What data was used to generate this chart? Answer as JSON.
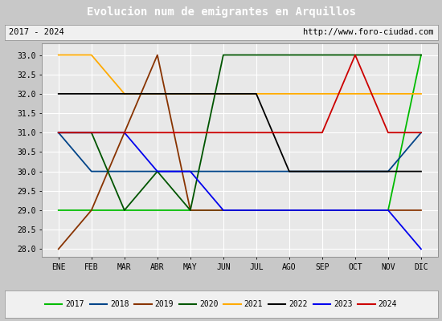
{
  "title": "Evolucion num de emigrantes en Arquillos",
  "subtitle_left": "2017 - 2024",
  "subtitle_right": "http://www.foro-ciudad.com",
  "ylim": [
    27.8,
    33.3
  ],
  "yticks": [
    28.0,
    28.5,
    29.0,
    29.5,
    30.0,
    30.5,
    31.0,
    31.5,
    32.0,
    32.5,
    33.0
  ],
  "months": [
    "ENE",
    "FEB",
    "MAR",
    "ABR",
    "MAY",
    "JUN",
    "JUL",
    "AGO",
    "SEP",
    "OCT",
    "NOV",
    "DIC"
  ],
  "series": {
    "2017": {
      "color": "#00bb00",
      "values": [
        29.0,
        29.0,
        29.0,
        29.0,
        29.0,
        29.0,
        29.0,
        29.0,
        29.0,
        29.0,
        29.0,
        33.0
      ]
    },
    "2018": {
      "color": "#004488",
      "values": [
        31.0,
        30.0,
        30.0,
        30.0,
        30.0,
        30.0,
        30.0,
        30.0,
        30.0,
        30.0,
        30.0,
        31.0
      ]
    },
    "2019": {
      "color": "#883300",
      "values": [
        28.0,
        29.0,
        31.0,
        33.0,
        29.0,
        29.0,
        29.0,
        29.0,
        29.0,
        29.0,
        29.0,
        29.0
      ]
    },
    "2020": {
      "color": "#005500",
      "values": [
        31.0,
        31.0,
        29.0,
        30.0,
        29.0,
        33.0,
        33.0,
        33.0,
        33.0,
        33.0,
        33.0,
        33.0
      ]
    },
    "2021": {
      "color": "#ffaa00",
      "values": [
        33.0,
        33.0,
        32.0,
        32.0,
        32.0,
        32.0,
        32.0,
        32.0,
        32.0,
        32.0,
        32.0,
        32.0
      ]
    },
    "2022": {
      "color": "#000000",
      "values": [
        32.0,
        32.0,
        32.0,
        32.0,
        32.0,
        32.0,
        32.0,
        30.0,
        30.0,
        30.0,
        30.0,
        30.0
      ]
    },
    "2023": {
      "color": "#0000ee",
      "values": [
        31.0,
        31.0,
        31.0,
        30.0,
        30.0,
        29.0,
        29.0,
        29.0,
        29.0,
        29.0,
        29.0,
        28.0
      ]
    },
    "2024": {
      "color": "#cc0000",
      "values": [
        31.0,
        31.0,
        31.0,
        31.0,
        31.0,
        31.0,
        31.0,
        31.0,
        31.0,
        33.0,
        31.0,
        31.0
      ]
    }
  },
  "title_bg_color": "#4488bb",
  "title_font_color": "#ffffff",
  "plot_bg_color": "#e8e8e8",
  "outer_bg_color": "#c8c8c8",
  "grid_color": "#ffffff",
  "legend_order": [
    "2017",
    "2018",
    "2019",
    "2020",
    "2021",
    "2022",
    "2023",
    "2024"
  ],
  "fig_width": 5.5,
  "fig_height": 4.0,
  "dpi": 100
}
